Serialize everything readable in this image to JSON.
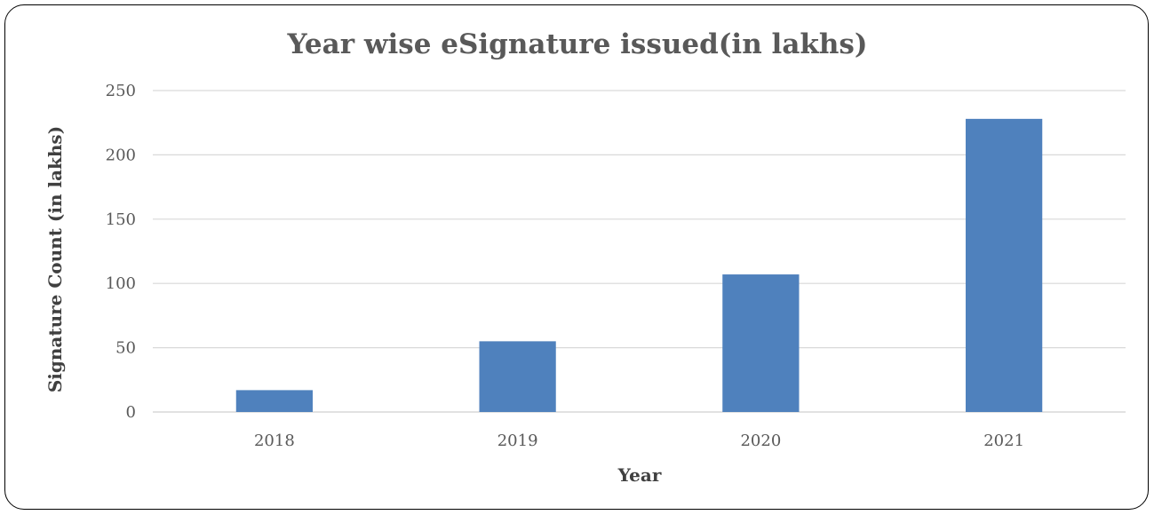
{
  "chart_data": {
    "type": "bar",
    "title": "Year wise eSignature issued(in  lakhs)",
    "xlabel": "Year",
    "ylabel": "Signature Count (in lakhs)",
    "categories": [
      "2018",
      "2019",
      "2020",
      "2021"
    ],
    "values": [
      17,
      55,
      107,
      228
    ],
    "ylim": [
      0,
      250
    ],
    "yticks": [
      0,
      50,
      100,
      150,
      200,
      250
    ],
    "grid": true,
    "legend": "none",
    "bar_color": "#4f81bd"
  }
}
